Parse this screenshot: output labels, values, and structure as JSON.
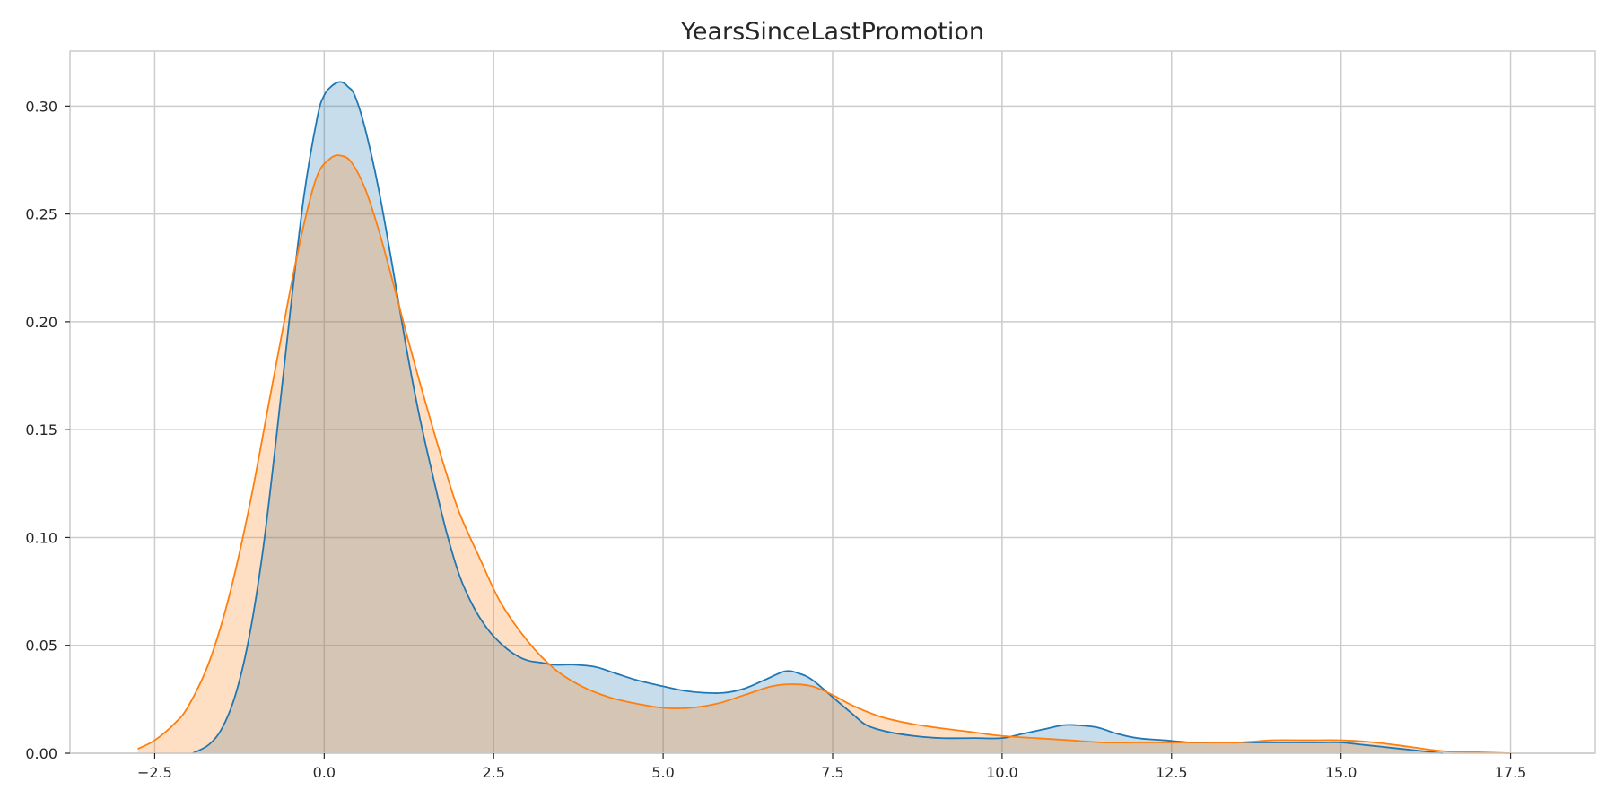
{
  "chart_data": {
    "type": "area",
    "title": "YearsSinceLastPromotion",
    "xlabel": "",
    "ylabel": "",
    "xlim": [
      -3.75,
      18.75
    ],
    "ylim": [
      0,
      0.3255
    ],
    "grid": true,
    "x_ticks": [
      -2.5,
      0.0,
      2.5,
      5.0,
      7.5,
      10.0,
      12.5,
      15.0,
      17.5
    ],
    "x_tick_labels": [
      "−2.5",
      "0.0",
      "2.5",
      "5.0",
      "7.5",
      "10.0",
      "12.5",
      "15.0",
      "17.5"
    ],
    "y_ticks": [
      0.0,
      0.05,
      0.1,
      0.15,
      0.2,
      0.25,
      0.3
    ],
    "y_tick_labels": [
      "0.00",
      "0.05",
      "0.10",
      "0.15",
      "0.20",
      "0.25",
      "0.30"
    ],
    "series": [
      {
        "color": "#1f77b4",
        "fill": "#1f77b4",
        "fill_opacity": 0.25,
        "x": [
          -1.94,
          -1.7,
          -1.5,
          -1.3,
          -1.1,
          -0.9,
          -0.7,
          -0.5,
          -0.3,
          -0.1,
          0.0,
          0.1,
          0.2,
          0.27,
          0.35,
          0.45,
          0.6,
          0.8,
          1.0,
          1.2,
          1.4,
          1.6,
          1.8,
          2.0,
          2.2,
          2.4,
          2.6,
          2.8,
          3.0,
          3.2,
          3.4,
          3.7,
          4.0,
          4.3,
          4.6,
          5.0,
          5.3,
          5.6,
          5.9,
          6.2,
          6.5,
          6.8,
          7.0,
          7.2,
          7.5,
          7.8,
          8.0,
          8.3,
          8.7,
          9.1,
          9.6,
          10.0,
          10.3,
          10.6,
          10.9,
          11.1,
          11.4,
          11.7,
          12.0,
          12.4,
          12.8,
          13.3,
          13.8,
          14.3,
          14.7,
          15.0,
          15.3,
          15.6,
          15.9,
          16.2,
          16.5
        ],
        "y": [
          0.0,
          0.004,
          0.012,
          0.028,
          0.055,
          0.095,
          0.148,
          0.205,
          0.258,
          0.295,
          0.305,
          0.309,
          0.311,
          0.311,
          0.309,
          0.305,
          0.29,
          0.262,
          0.227,
          0.19,
          0.157,
          0.129,
          0.103,
          0.082,
          0.068,
          0.058,
          0.051,
          0.046,
          0.043,
          0.042,
          0.041,
          0.041,
          0.04,
          0.037,
          0.034,
          0.031,
          0.029,
          0.028,
          0.028,
          0.03,
          0.034,
          0.038,
          0.037,
          0.034,
          0.026,
          0.018,
          0.013,
          0.01,
          0.008,
          0.007,
          0.007,
          0.007,
          0.009,
          0.011,
          0.013,
          0.013,
          0.012,
          0.009,
          0.007,
          0.006,
          0.005,
          0.005,
          0.005,
          0.005,
          0.005,
          0.005,
          0.004,
          0.003,
          0.002,
          0.001,
          0.0
        ]
      },
      {
        "color": "#ff7f0e",
        "fill": "#ff7f0e",
        "fill_opacity": 0.25,
        "x": [
          -2.75,
          -2.5,
          -2.2,
          -2.0,
          -1.7,
          -1.4,
          -1.1,
          -0.8,
          -0.5,
          -0.3,
          -0.1,
          0.1,
          0.25,
          0.4,
          0.6,
          0.8,
          1.0,
          1.2,
          1.4,
          1.6,
          1.8,
          2.0,
          2.3,
          2.6,
          3.0,
          3.4,
          3.8,
          4.2,
          4.6,
          5.0,
          5.4,
          5.8,
          6.2,
          6.6,
          6.9,
          7.2,
          7.5,
          7.8,
          8.2,
          8.6,
          9.0,
          9.5,
          10.0,
          10.5,
          11.0,
          11.5,
          12.0,
          12.5,
          13.0,
          13.5,
          14.0,
          14.5,
          15.0,
          15.5,
          16.0,
          16.5,
          17.0,
          17.5
        ],
        "y": [
          0.002,
          0.006,
          0.014,
          0.022,
          0.042,
          0.073,
          0.115,
          0.165,
          0.215,
          0.245,
          0.268,
          0.276,
          0.277,
          0.274,
          0.262,
          0.243,
          0.22,
          0.196,
          0.173,
          0.151,
          0.13,
          0.111,
          0.09,
          0.07,
          0.052,
          0.039,
          0.031,
          0.026,
          0.023,
          0.021,
          0.021,
          0.023,
          0.027,
          0.031,
          0.032,
          0.031,
          0.027,
          0.022,
          0.017,
          0.014,
          0.012,
          0.01,
          0.008,
          0.007,
          0.006,
          0.005,
          0.005,
          0.005,
          0.005,
          0.005,
          0.006,
          0.006,
          0.006,
          0.005,
          0.003,
          0.001,
          0.0005,
          0.0
        ]
      }
    ]
  }
}
